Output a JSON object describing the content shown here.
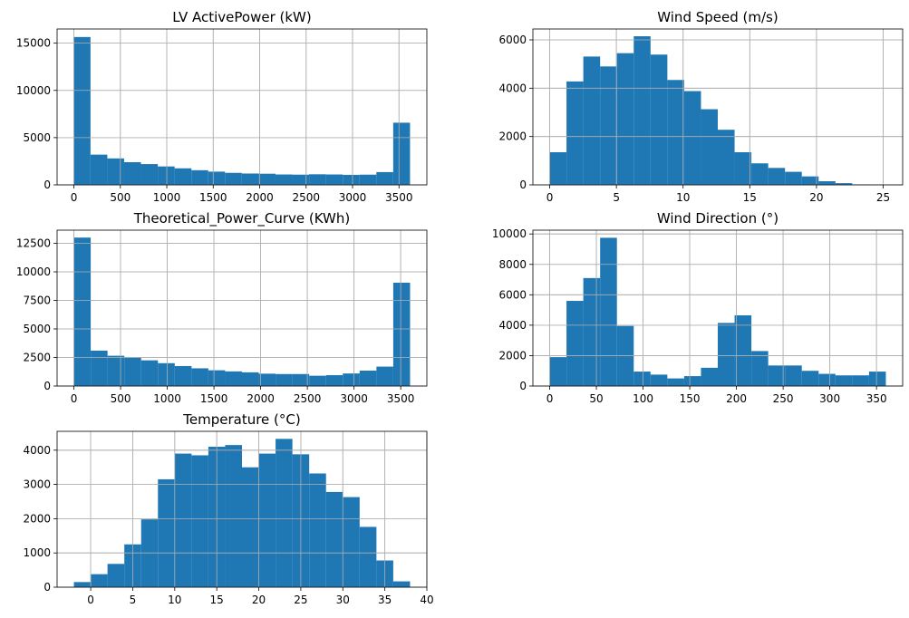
{
  "colors": {
    "bar": "#1f77b4",
    "grid": "#b0b0b0",
    "frame": "#000000"
  },
  "chart_data": [
    {
      "type": "bar",
      "title": "LV ActivePower (kW)",
      "bin_range": [
        -2.47,
        3618.73
      ],
      "bins": 20,
      "values": [
        15650,
        3200,
        2800,
        2400,
        2200,
        1950,
        1750,
        1550,
        1400,
        1270,
        1200,
        1180,
        1100,
        1080,
        1120,
        1100,
        1060,
        1080,
        1350,
        6580
      ],
      "xlim": [
        -181,
        3800
      ],
      "ylim": [
        0,
        16500
      ],
      "xticks": [
        0,
        500,
        1000,
        1500,
        2000,
        2500,
        3000,
        3500
      ],
      "yticks": [
        0,
        5000,
        10000,
        15000
      ],
      "grid": true
    },
    {
      "type": "bar",
      "title": "Wind Speed (m/s)",
      "bin_range": [
        0,
        25.2
      ],
      "bins": 20,
      "values": [
        1350,
        4280,
        5310,
        4900,
        5450,
        6150,
        5390,
        4340,
        3880,
        3130,
        2280,
        1350,
        890,
        700,
        540,
        350,
        150,
        70,
        20,
        10
      ],
      "xlim": [
        -1.26,
        26.46
      ],
      "ylim": [
        0,
        6450
      ],
      "xticks": [
        0,
        5,
        10,
        15,
        20,
        25
      ],
      "yticks": [
        0,
        2000,
        4000,
        6000
      ],
      "grid": true
    },
    {
      "type": "bar",
      "title": "Theoretical_Power_Curve (KWh)",
      "bin_range": [
        0,
        3600
      ],
      "bins": 20,
      "values": [
        13000,
        3100,
        2650,
        2500,
        2250,
        2000,
        1750,
        1550,
        1380,
        1280,
        1200,
        1080,
        1050,
        1050,
        900,
        950,
        1100,
        1350,
        1700,
        9050
      ],
      "xlim": [
        -180,
        3780
      ],
      "ylim": [
        0,
        13650
      ],
      "xticks": [
        0,
        500,
        1000,
        1500,
        2000,
        2500,
        3000,
        3500
      ],
      "yticks": [
        0,
        2500,
        5000,
        7500,
        10000,
        12500
      ],
      "grid": true
    },
    {
      "type": "bar",
      "title": "Wind Direction (°)",
      "bin_range": [
        0,
        360
      ],
      "bins": 20,
      "values": [
        1900,
        5600,
        7100,
        9750,
        3950,
        950,
        750,
        500,
        650,
        1200,
        4150,
        4650,
        2300,
        1350,
        1350,
        1000,
        800,
        700,
        700,
        950
      ],
      "xlim": [
        -18,
        378
      ],
      "ylim": [
        0,
        10250
      ],
      "xticks": [
        0,
        50,
        100,
        150,
        200,
        250,
        300,
        350
      ],
      "yticks": [
        0,
        2000,
        4000,
        6000,
        8000,
        10000
      ],
      "grid": true
    },
    {
      "type": "bar",
      "title": "Temperature (°C)",
      "bin_range": [
        -2,
        38
      ],
      "bins": 20,
      "values": [
        150,
        380,
        680,
        1250,
        1980,
        3150,
        3900,
        3850,
        4100,
        4150,
        3500,
        3900,
        4330,
        3880,
        3320,
        2780,
        2630,
        1760,
        780,
        170
      ],
      "xlim": [
        -4,
        40
      ],
      "ylim": [
        0,
        4550
      ],
      "xticks": [
        0,
        5,
        10,
        15,
        20,
        25,
        30,
        35,
        40
      ],
      "yticks": [
        0,
        1000,
        2000,
        3000,
        4000
      ],
      "grid": true
    }
  ]
}
